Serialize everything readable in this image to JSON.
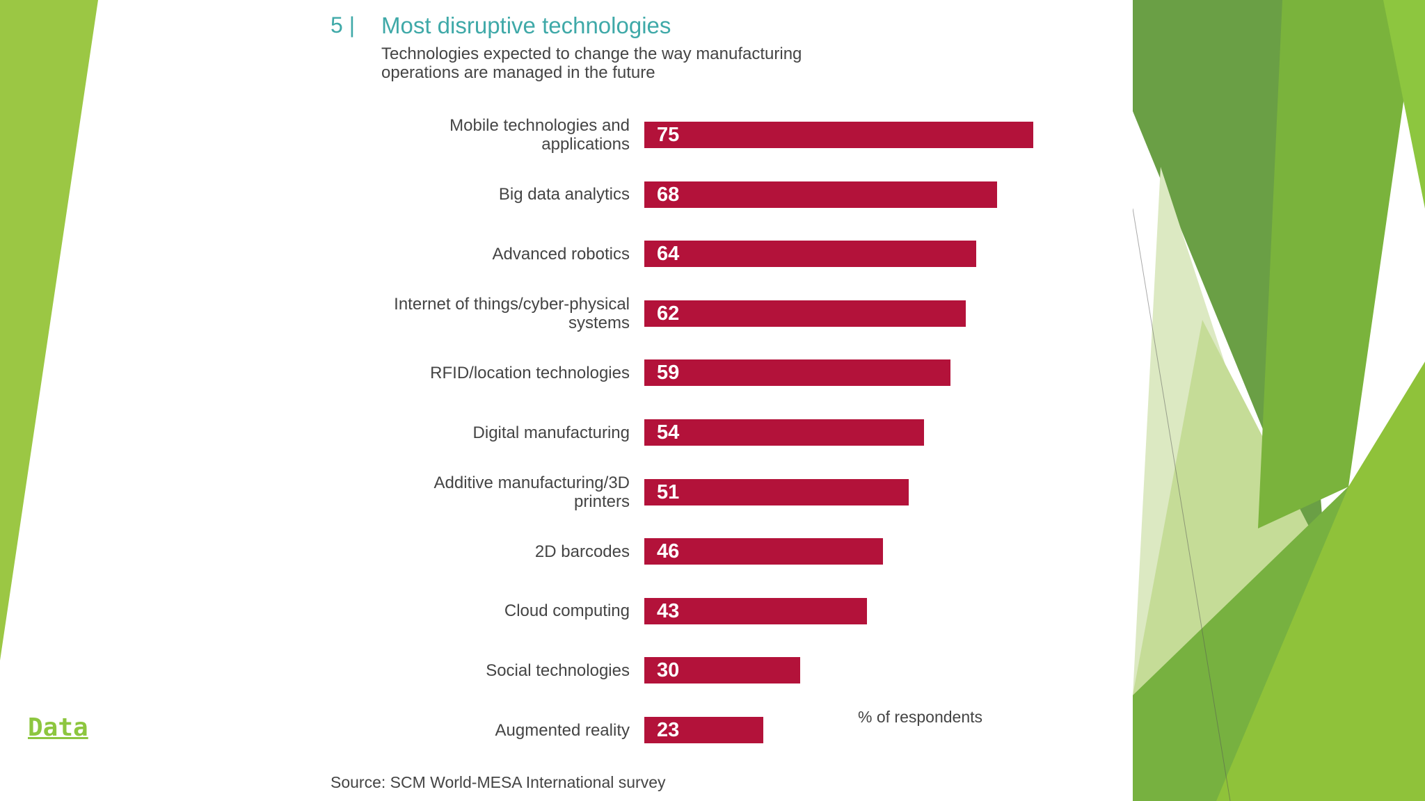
{
  "colors": {
    "bar": "#b3123a",
    "title": "#3fa9a8",
    "label": "#444444",
    "link": "#8dc63f",
    "green_light": "#9bc744",
    "green_mid": "#7ab33c",
    "green_dark": "#5e9a3a"
  },
  "link": {
    "label": "Data"
  },
  "chart_data": {
    "type": "bar",
    "orientation": "horizontal",
    "figure_number": "5 |",
    "title": "Most disruptive technologies",
    "subtitle_lines": [
      "Technologies expected to change the way manufacturing",
      "operations are managed in the future"
    ],
    "categories": [
      [
        "Mobile technologies and",
        "applications"
      ],
      [
        "Big data analytics"
      ],
      [
        "Advanced robotics"
      ],
      [
        "Internet of things/cyber-physical",
        "systems"
      ],
      [
        "RFID/location technologies"
      ],
      [
        "Digital manufacturing"
      ],
      [
        "Additive manufacturing/3D",
        "printers"
      ],
      [
        "2D barcodes"
      ],
      [
        "Cloud computing"
      ],
      [
        "Social technologies"
      ],
      [
        "Augmented reality"
      ]
    ],
    "values": [
      75,
      68,
      64,
      62,
      59,
      54,
      51,
      46,
      43,
      30,
      23
    ],
    "units_label": "% of respondents",
    "source": "Source: SCM World-MESA International survey",
    "xlim": [
      0,
      100
    ]
  }
}
